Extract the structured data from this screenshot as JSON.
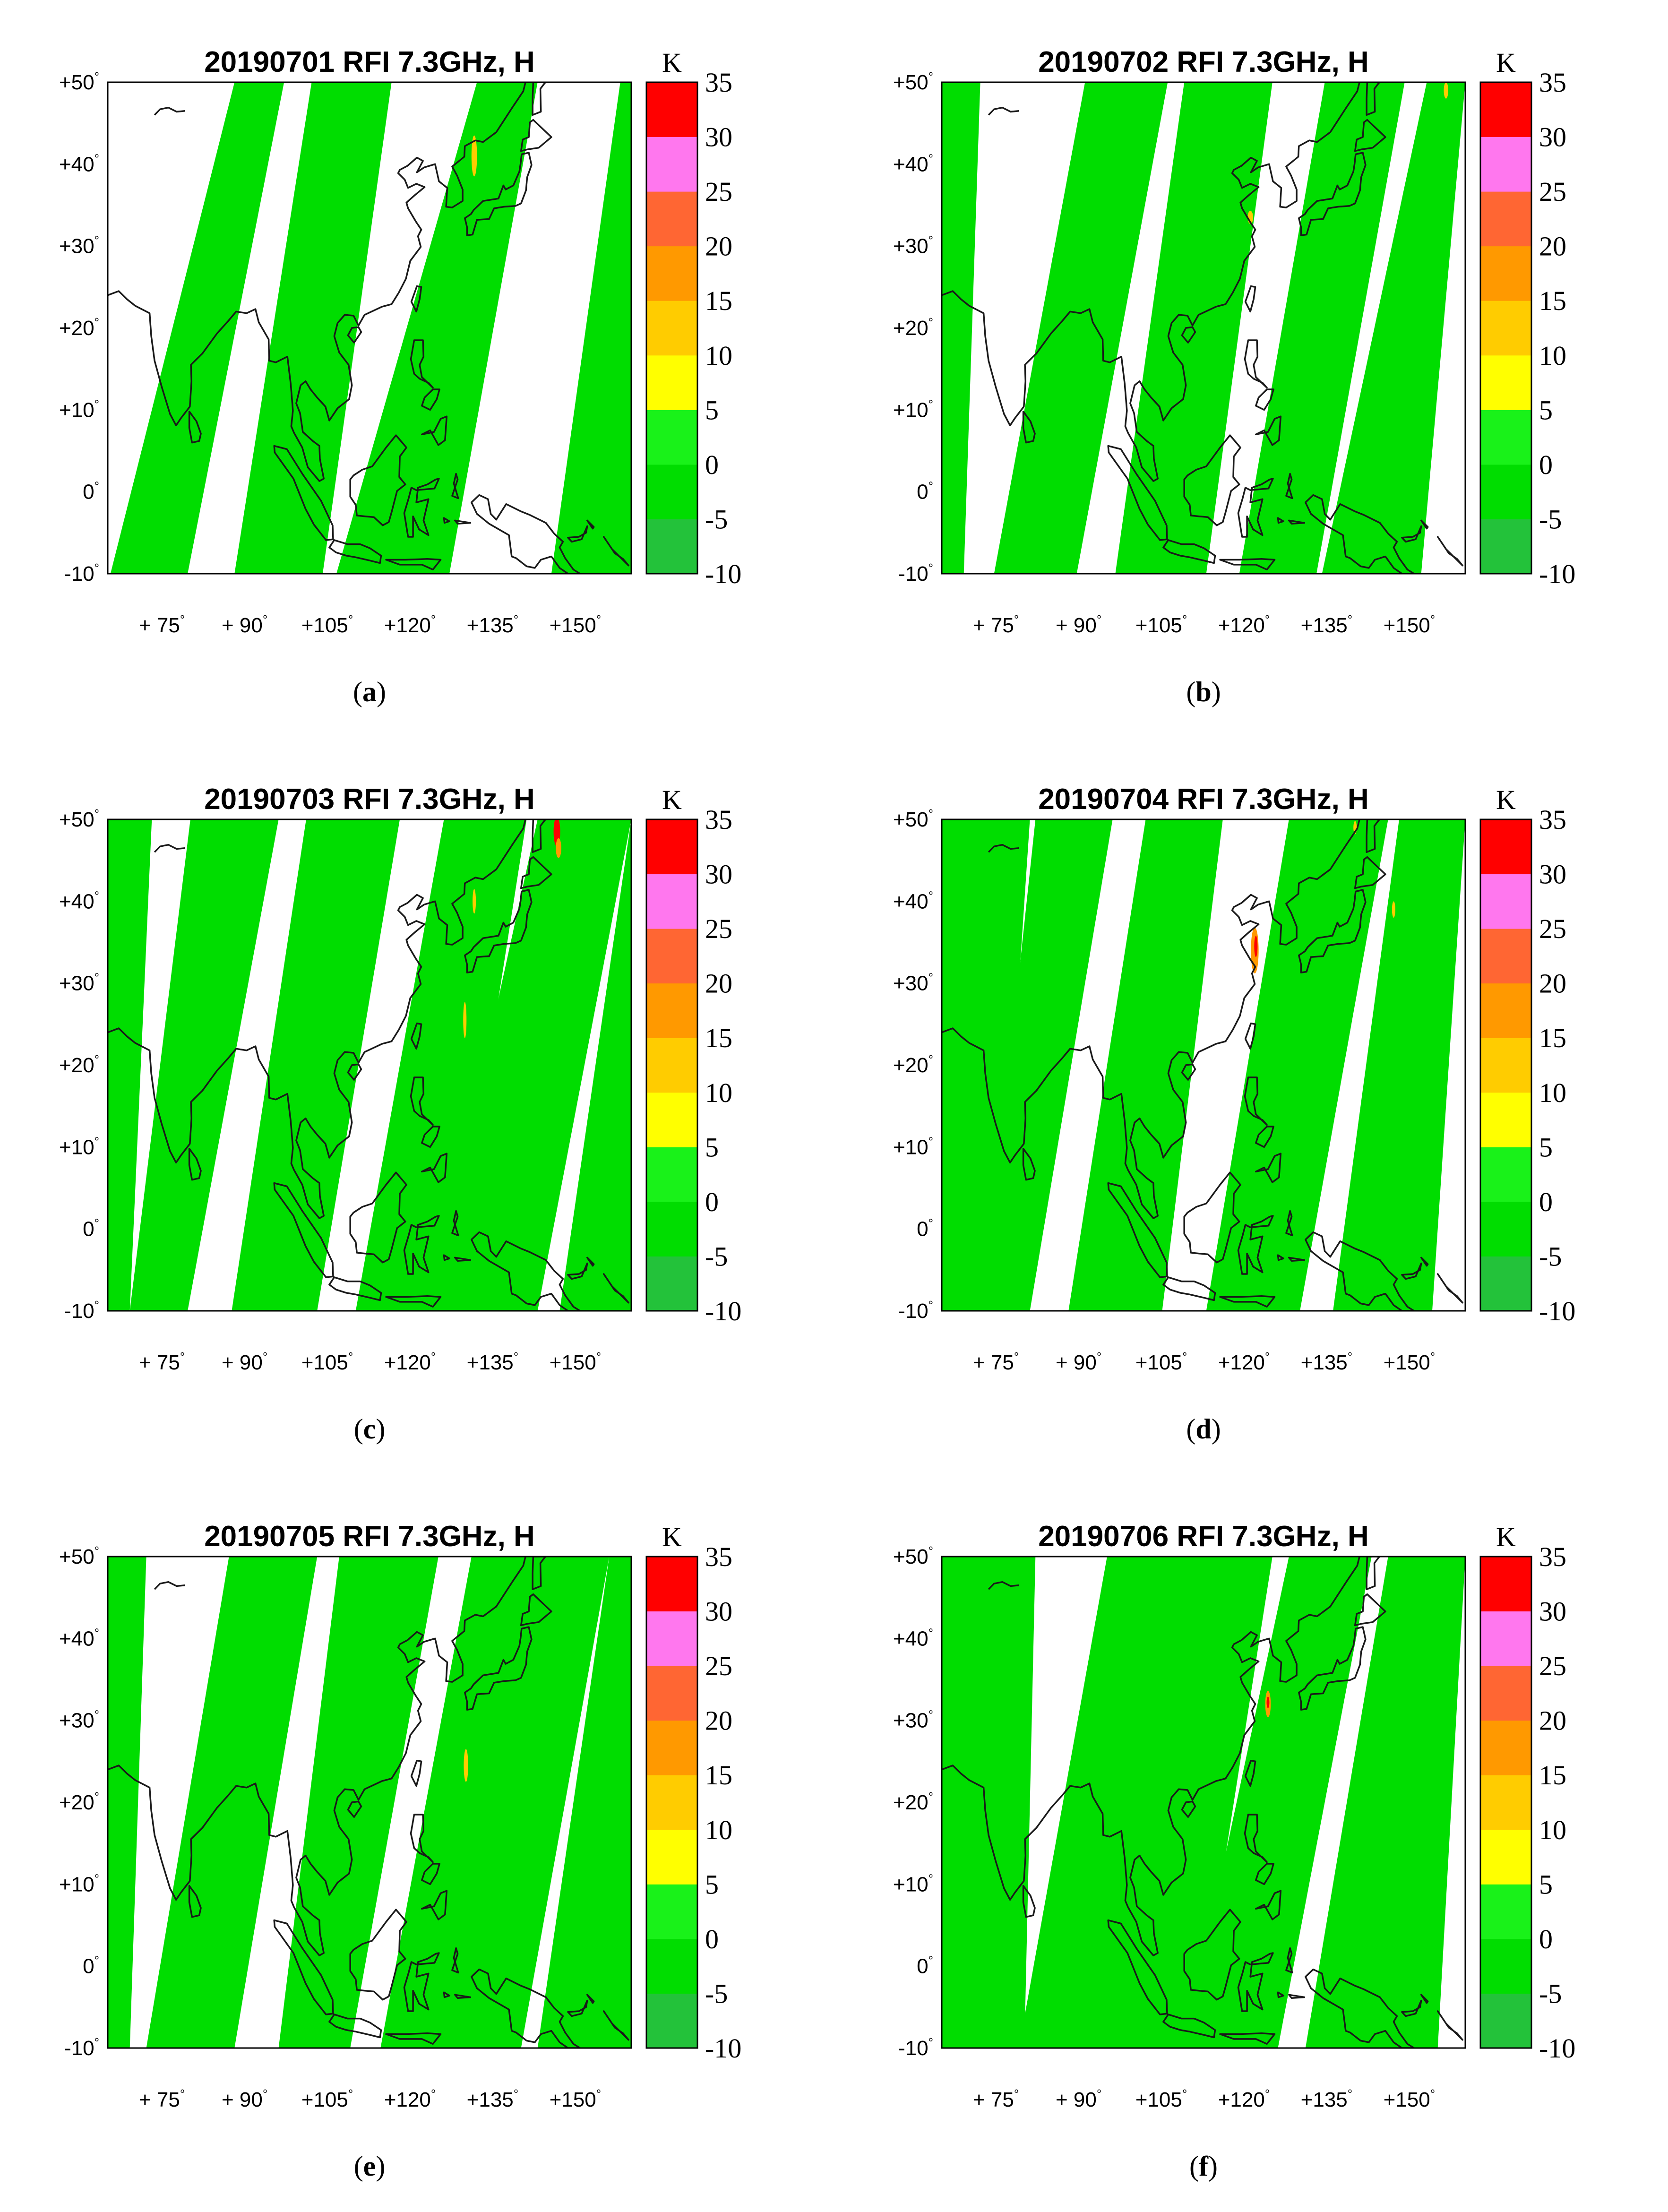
{
  "figure": {
    "unit": "K",
    "colorbar": {
      "ticks": [
        "35",
        "30",
        "25",
        "20",
        "15",
        "10",
        "5",
        "0",
        "-5",
        "-10"
      ],
      "colors": [
        "#23c23a",
        "#00dd00",
        "#19f219",
        "#ffff00",
        "#ffcc00",
        "#ff9900",
        "#ff6633",
        "#ff77ee",
        "#ff0000"
      ]
    },
    "lat_labels": [
      "+50",
      "+40",
      "+30",
      "+20",
      "+10",
      "0",
      "-10"
    ],
    "lon_labels": [
      "+ 75",
      "+ 90",
      "+105",
      "+120",
      "+135",
      "+150"
    ],
    "degree_symbol": "°"
  },
  "panels": [
    {
      "title": "20190701 RFI 7.3GHz, H",
      "label_open": "(",
      "label": "a",
      "label_close": ")"
    },
    {
      "title": "20190702 RFI 7.3GHz, H",
      "label_open": "(",
      "label": "b",
      "label_close": ")"
    },
    {
      "title": "20190703 RFI 7.3GHz, H",
      "label_open": "(",
      "label": "c",
      "label_close": ")"
    },
    {
      "title": "20190704 RFI 7.3GHz, H",
      "label_open": "(",
      "label": "d",
      "label_close": ")"
    },
    {
      "title": "20190705 RFI 7.3GHz, H",
      "label_open": "(",
      "label": "e",
      "label_close": ")"
    },
    {
      "title": "20190706 RFI 7.3GHz, H",
      "label_open": "(",
      "label": "f",
      "label_close": ")"
    }
  ]
}
